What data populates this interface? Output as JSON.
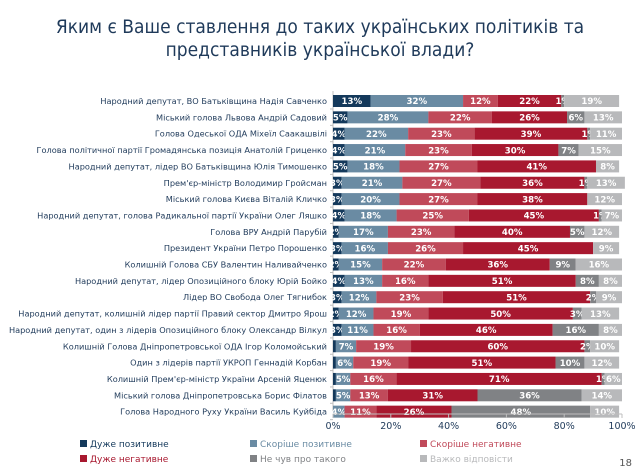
{
  "page": {
    "title_line1": "Яким є Ваше ставлення до таких українських політиків та",
    "title_line2": "представників української влади?",
    "page_number": "18"
  },
  "chart_data": {
    "type": "bar",
    "orientation": "horizontal",
    "stacked": true,
    "title": "Яким є Ваше ставлення до таких українських політиків та представників української влади?",
    "xlabel": "",
    "ylabel": "",
    "xlim": [
      0,
      100
    ],
    "x_ticks": [
      "0%",
      "20%",
      "40%",
      "60%",
      "80%",
      "100%"
    ],
    "legend_position": "bottom",
    "categories": [
      "Народний депутат, ВО Батьківщина Надія Савченко",
      "Міський голова Львова Андрій Садовий",
      "Голова Одеської ОДА Міхеїл Саакашвілі",
      "Голова політичної партії Громадянська позиція Анатолій Гриценко",
      "Народний депутат, лідер ВО Батьківщина Юлія Тимошенко",
      "Прем'єр-міністр Володимир Гройсман",
      "Міський голова Києва Віталій Кличко",
      "Народний депутат, голова Радикальної партії України Олег Ляшко",
      "Голова ВРУ Андрій Парубій",
      "Президент України Петро Порошенко",
      "Колишній Голова СБУ Валентин Наливайченко",
      "Народний депутат, лідер Опозиційного блоку Юрій Бойко",
      "Лідер ВО Свобода Олег Тягнибок",
      "Народний депутат, колишній лідер партії Правий сектор Дмитро Ярош",
      "Народний депутат, один з лідерів Опозиційного блоку Олександр Вілкул",
      "Колишній Голова Дніпропетровської ОДА Ігор Коломойський",
      "Один з лідерів партії УКРОП Геннадій Корбан",
      "Колишній Прем'єр-міністр України Арсеній Яценюк",
      "Міський голова Дніпропетровська Борис Філатов",
      "Голова Народного Руху України Василь Куйбіда"
    ],
    "series": [
      {
        "name": "Дуже позитивне",
        "color": "#14395b",
        "values": [
          13,
          5,
          4,
          4,
          5,
          3,
          3,
          4,
          2,
          3,
          2,
          4,
          3,
          2,
          3,
          1,
          1,
          1,
          1,
          0
        ]
      },
      {
        "name": "Скоріше позитивне",
        "color": "#6a8ba3",
        "values": [
          32,
          28,
          22,
          21,
          18,
          21,
          20,
          18,
          17,
          16,
          15,
          13,
          12,
          12,
          11,
          7,
          6,
          5,
          5,
          4
        ]
      },
      {
        "name": "Скоріше негативне",
        "color": "#c04a5a",
        "values": [
          12,
          22,
          23,
          23,
          27,
          27,
          27,
          25,
          23,
          26,
          22,
          16,
          23,
          19,
          16,
          19,
          19,
          16,
          13,
          11
        ]
      },
      {
        "name": "Дуже негативне",
        "color": "#a8182f",
        "values": [
          22,
          26,
          39,
          30,
          41,
          36,
          38,
          45,
          40,
          45,
          36,
          51,
          51,
          50,
          46,
          60,
          51,
          71,
          31,
          26
        ]
      },
      {
        "name": "Не чув про такого",
        "color": "#808285",
        "values": [
          1,
          6,
          1,
          7,
          0,
          1,
          0,
          1,
          5,
          0,
          9,
          8,
          2,
          3,
          16,
          2,
          10,
          1,
          36,
          48
        ]
      },
      {
        "name": "Важко відповісти",
        "color": "#b8b9bb",
        "values": [
          19,
          13,
          11,
          15,
          8,
          13,
          12,
          7,
          12,
          9,
          16,
          8,
          9,
          13,
          8,
          10,
          12,
          6,
          14,
          10
        ]
      }
    ],
    "data_labels": [
      [
        "13%",
        "32%",
        "12%",
        "22%",
        "1%",
        "19%"
      ],
      [
        "5%",
        "28%",
        "22%",
        "26%",
        "6%",
        "13%"
      ],
      [
        "4%",
        "22%",
        "23%",
        "39%",
        "1%",
        "11%"
      ],
      [
        "4%",
        "21%",
        "23%",
        "30%",
        "7%",
        "15%"
      ],
      [
        "5%",
        "18%",
        "27%",
        "41%",
        "",
        "8%"
      ],
      [
        "3%",
        "21%",
        "27%",
        "36%",
        "1%",
        "13%"
      ],
      [
        "3%",
        "20%",
        "27%",
        "38%",
        "",
        "12%"
      ],
      [
        "4%",
        "18%",
        "25%",
        "45%",
        "1%",
        "7%"
      ],
      [
        "2%",
        "17%",
        "23%",
        "40%",
        "5%",
        "12%"
      ],
      [
        "3%",
        "16%",
        "26%",
        "45%",
        "",
        "9%"
      ],
      [
        "2%",
        "15%",
        "22%",
        "36%",
        "9%",
        "16%"
      ],
      [
        "4%",
        "13%",
        "16%",
        "51%",
        "8%",
        "8%"
      ],
      [
        "3%",
        "12%",
        "23%",
        "51%",
        "2%",
        "9%"
      ],
      [
        "2%",
        "12%",
        "19%",
        "50%",
        "3%",
        "13%"
      ],
      [
        "3%",
        "11%",
        "16%",
        "46%",
        "16%",
        "8%"
      ],
      [
        "",
        "7%",
        "19%",
        "60%",
        "2%",
        "10%"
      ],
      [
        "",
        "6%",
        "19%",
        "51%",
        "10%",
        "12%"
      ],
      [
        "",
        "5%",
        "16%",
        "71%",
        "1%",
        "6%"
      ],
      [
        "",
        "5%",
        "13%",
        "31%",
        "36%",
        "14%"
      ],
      [
        "",
        "4%",
        "11%",
        "26%",
        "48%",
        "10%"
      ]
    ]
  }
}
